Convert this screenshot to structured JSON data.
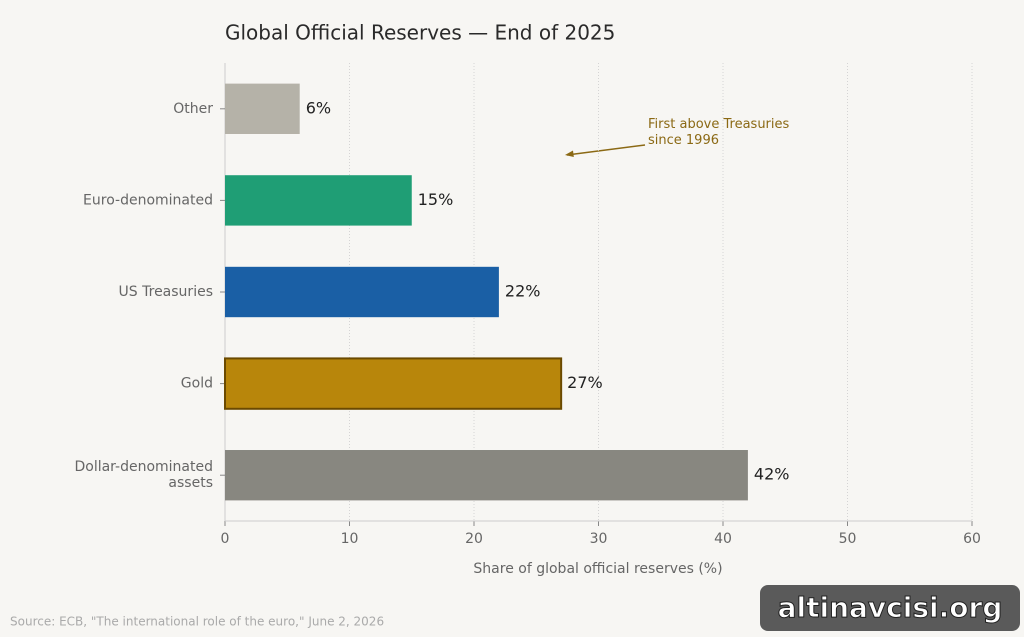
{
  "chart_data": {
    "type": "barh",
    "title": "Global Official Reserves — End of 2025",
    "xlabel": "Share of global official reserves (%)",
    "categories": [
      "Other",
      "Euro-denominated",
      "US Treasuries",
      "Gold",
      "Dollar-denominated\nassets"
    ],
    "values": [
      6,
      15,
      22,
      27,
      42
    ],
    "value_labels": [
      "6%",
      "15%",
      "22%",
      "27%",
      "42%"
    ],
    "colors": [
      "#b5b2a8",
      "#1f9e75",
      "#1a5fa5",
      "#b8860b",
      "#888780"
    ],
    "edge_colors": [
      null,
      null,
      null,
      "#6b4a00",
      null
    ],
    "xlim": [
      0,
      60
    ],
    "xticks": [
      0,
      10,
      20,
      30,
      40,
      50,
      60
    ],
    "grid": true,
    "annotation": "First above Treasuries\nsince 1996",
    "source": "Source: ECB, \"The international role of the euro,\" June 2, 2026"
  },
  "watermark": "altinavcisi.org"
}
